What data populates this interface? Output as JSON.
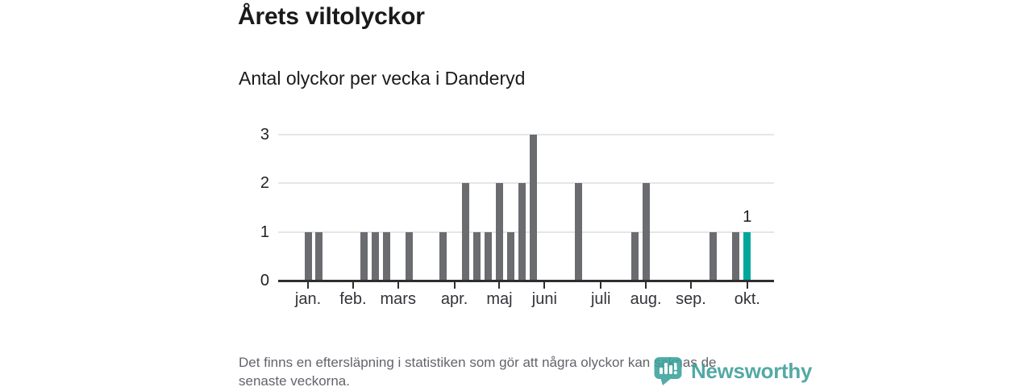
{
  "chart_data": {
    "type": "bar",
    "title": "Årets viltolyckor",
    "subtitle": "Antal olyckor per vecka i Danderyd",
    "x_unit": "week",
    "values": [
      1,
      1,
      0,
      0,
      0,
      1,
      1,
      1,
      0,
      1,
      0,
      0,
      1,
      0,
      2,
      1,
      1,
      2,
      1,
      2,
      3,
      0,
      0,
      0,
      2,
      0,
      0,
      0,
      0,
      1,
      2,
      0,
      0,
      0,
      0,
      0,
      1,
      0,
      1,
      1
    ],
    "month_ticks": [
      {
        "label": "jan.",
        "week": 0
      },
      {
        "label": "feb.",
        "week": 4
      },
      {
        "label": "mars",
        "week": 8
      },
      {
        "label": "apr.",
        "week": 13
      },
      {
        "label": "maj",
        "week": 17
      },
      {
        "label": "juni",
        "week": 21
      },
      {
        "label": "juli",
        "week": 26
      },
      {
        "label": "aug.",
        "week": 30
      },
      {
        "label": "sep.",
        "week": 34
      },
      {
        "label": "okt.",
        "week": 39
      }
    ],
    "yticks": [
      0,
      1,
      2,
      3
    ],
    "ylim": [
      0,
      3
    ],
    "grid": "horizontal",
    "legend": "none",
    "bar_color": "#6b6c70",
    "highlight_color": "#00a79c",
    "highlight_index": 39,
    "annotation": {
      "text": "1",
      "week": 39
    }
  },
  "footer": {
    "lines": [
      "Det finns en eftersläpning i statistiken som gör att några olyckor kan saknas de",
      "senaste veckorna."
    ]
  },
  "branding": {
    "name": "Newsworthy",
    "brand_color": "#3c9e99"
  }
}
